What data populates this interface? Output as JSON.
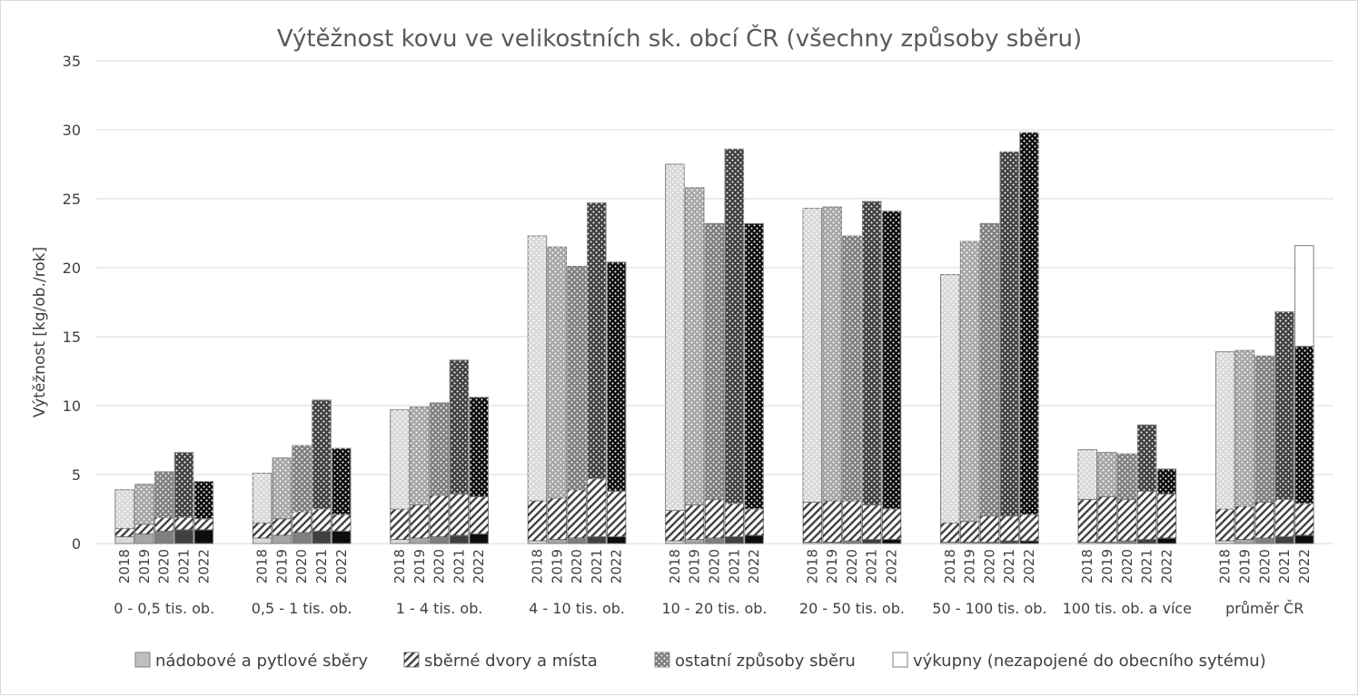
{
  "chart_data": {
    "type": "bar",
    "stacked": true,
    "title": "Výtěžnost kovu ve velikostních sk. obcí ČR (všechny způsoby sběru)",
    "ylabel": "Výtěžnost [kg/ob./rok]",
    "ylim": [
      0,
      35
    ],
    "yticks": [
      "0",
      "5",
      "10",
      "15",
      "20",
      "25",
      "30",
      "35"
    ],
    "grid": true,
    "legend_position": "bottom",
    "years": [
      "2018",
      "2019",
      "2020",
      "2021",
      "2022"
    ],
    "groups": [
      "0 - 0,5 tis. ob.",
      "0,5 - 1 tis. ob.",
      "1 - 4 tis. ob.",
      "4 - 10 tis. ob.",
      "10 - 20 tis. ob.",
      "20 - 50 tis. ob.",
      "50 - 100 tis. ob.",
      "100 tis. ob. a více",
      "průměr ČR"
    ],
    "series": [
      {
        "name": "nádobové a pytlové sběry",
        "values": [
          [
            0.5,
            0.7,
            0.9,
            1.0,
            1.0
          ],
          [
            0.4,
            0.6,
            0.8,
            0.9,
            0.9
          ],
          [
            0.3,
            0.4,
            0.5,
            0.6,
            0.7
          ],
          [
            0.2,
            0.3,
            0.4,
            0.5,
            0.5
          ],
          [
            0.2,
            0.3,
            0.4,
            0.5,
            0.6
          ],
          [
            0.1,
            0.1,
            0.2,
            0.3,
            0.3
          ],
          [
            0.1,
            0.1,
            0.1,
            0.2,
            0.2
          ],
          [
            0.1,
            0.1,
            0.2,
            0.3,
            0.4
          ],
          [
            0.2,
            0.3,
            0.4,
            0.5,
            0.6
          ]
        ]
      },
      {
        "name": "sběrné dvory a místa",
        "values": [
          [
            0.6,
            0.7,
            1.0,
            0.9,
            0.8
          ],
          [
            1.1,
            1.2,
            1.5,
            1.6,
            1.2
          ],
          [
            2.2,
            2.4,
            3.0,
            3.0,
            2.7
          ],
          [
            2.9,
            3.0,
            3.5,
            4.2,
            3.3
          ],
          [
            2.2,
            2.5,
            2.8,
            2.4,
            1.9
          ],
          [
            2.9,
            3.0,
            2.9,
            2.5,
            2.2
          ],
          [
            1.4,
            1.5,
            1.9,
            1.8,
            1.9
          ],
          [
            3.1,
            3.3,
            3.0,
            3.5,
            3.2
          ],
          [
            2.3,
            2.4,
            2.6,
            2.7,
            2.3
          ]
        ]
      },
      {
        "name": "ostatní způsoby sběru",
        "values": [
          [
            2.8,
            2.9,
            3.3,
            4.7,
            2.7
          ],
          [
            3.6,
            4.4,
            4.8,
            7.9,
            4.8
          ],
          [
            7.2,
            7.1,
            6.7,
            9.7,
            7.2
          ],
          [
            19.2,
            18.2,
            16.2,
            20.0,
            16.6
          ],
          [
            25.1,
            23.0,
            20.0,
            25.7,
            20.7
          ],
          [
            21.3,
            21.3,
            19.2,
            22.0,
            21.6
          ],
          [
            18.0,
            20.3,
            21.2,
            26.4,
            27.7
          ],
          [
            3.6,
            3.2,
            3.3,
            4.8,
            1.8
          ],
          [
            11.4,
            11.3,
            10.6,
            13.6,
            11.4
          ]
        ]
      },
      {
        "name": "výkupny (nezapojené do obecního sytému)",
        "values": [
          [
            0,
            0,
            0,
            0,
            0
          ],
          [
            0,
            0,
            0,
            0,
            0
          ],
          [
            0,
            0,
            0,
            0,
            0
          ],
          [
            0,
            0,
            0,
            0,
            0
          ],
          [
            0,
            0,
            0,
            0,
            0
          ],
          [
            0,
            0,
            0,
            0,
            0
          ],
          [
            0,
            0,
            0,
            0,
            0
          ],
          [
            0,
            0,
            0,
            0,
            0
          ],
          [
            0,
            0,
            0,
            0,
            7.3
          ]
        ]
      }
    ],
    "year_colors": [
      "#d9d9d9",
      "#a6a6a6",
      "#7f7f7f",
      "#404040",
      "#0d0d0d"
    ],
    "legend_colors": [
      "#bfbfbf",
      "#ffffff",
      "#7f7f7f",
      "#ffffff"
    ]
  }
}
